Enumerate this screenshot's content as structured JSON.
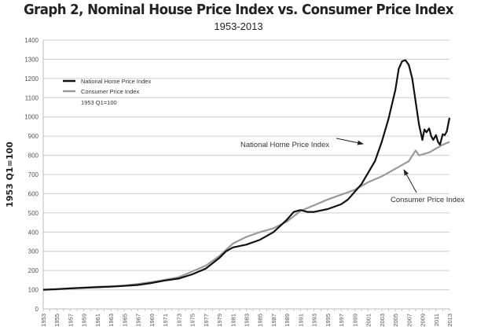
{
  "chart_data": {
    "type": "line",
    "title": "Graph 2, Nominal House Price Index vs. Consumer Price Index",
    "subtitle": "1953-2013",
    "xlabel": "",
    "ylabel": "1953 Q1=100",
    "ylim": [
      0,
      1400
    ],
    "xlim": [
      1953,
      2013
    ],
    "yticks": [
      0,
      100,
      200,
      300,
      400,
      500,
      600,
      700,
      800,
      900,
      1000,
      1100,
      1200,
      1300,
      1400
    ],
    "xticks": [
      "1953",
      "1955",
      "1957",
      "1959",
      "1961",
      "1963",
      "1965",
      "1967",
      "1969",
      "1971",
      "1973",
      "1975",
      "1977",
      "1979",
      "1981",
      "1983",
      "1985",
      "1987",
      "1989",
      "1991",
      "1993",
      "1995",
      "1997",
      "1999",
      "2001",
      "2003",
      "2005",
      "2007",
      "2009",
      "2011",
      "2013"
    ],
    "grid": true,
    "legend": {
      "placement": "top-left",
      "entries": [
        "National Home Price Index",
        "Consumer Price Index"
      ],
      "note": "1953 Q1=100"
    },
    "annotations": [
      "National Home Price Index",
      "Consumer Price Index"
    ],
    "series": [
      {
        "name": "National Home Price Index",
        "color": "#111111",
        "x": [
          1953,
          1955,
          1957,
          1959,
          1961,
          1963,
          1965,
          1967,
          1969,
          1971,
          1973,
          1975,
          1977,
          1979,
          1980,
          1981,
          1983,
          1985,
          1987,
          1989,
          1990,
          1991,
          1992,
          1993,
          1995,
          1997,
          1998,
          1999,
          2000,
          2001,
          2002,
          2003,
          2004,
          2005,
          2005.5,
          2006,
          2006.5,
          2007,
          2007.5,
          2008,
          2008.5,
          2009,
          2009.3,
          2009.6,
          2010,
          2010.3,
          2010.6,
          2011,
          2011.3,
          2011.6,
          2012,
          2012.3,
          2012.6,
          2013
        ],
        "values": [
          100,
          103,
          107,
          110,
          113,
          116,
          120,
          125,
          135,
          148,
          158,
          180,
          210,
          265,
          300,
          320,
          335,
          360,
          400,
          465,
          505,
          515,
          505,
          505,
          520,
          545,
          570,
          610,
          650,
          710,
          770,
          870,
          990,
          1140,
          1250,
          1290,
          1295,
          1270,
          1200,
          1080,
          960,
          880,
          935,
          920,
          940,
          900,
          880,
          905,
          870,
          855,
          910,
          905,
          925,
          995
        ]
      },
      {
        "name": "Consumer Price Index",
        "color": "#999999",
        "x": [
          1953,
          1955,
          1957,
          1959,
          1961,
          1963,
          1965,
          1967,
          1969,
          1971,
          1973,
          1975,
          1977,
          1979,
          1981,
          1983,
          1985,
          1987,
          1989,
          1991,
          1993,
          1995,
          1997,
          1999,
          2001,
          2003,
          2005,
          2007,
          2008,
          2008.5,
          2009,
          2010,
          2011,
          2012,
          2013
        ],
        "values": [
          100,
          102,
          107,
          111,
          115,
          118,
          122,
          130,
          140,
          152,
          165,
          195,
          225,
          275,
          340,
          375,
          400,
          420,
          455,
          510,
          540,
          570,
          595,
          620,
          660,
          690,
          730,
          770,
          825,
          800,
          805,
          815,
          835,
          855,
          870
        ]
      }
    ]
  }
}
